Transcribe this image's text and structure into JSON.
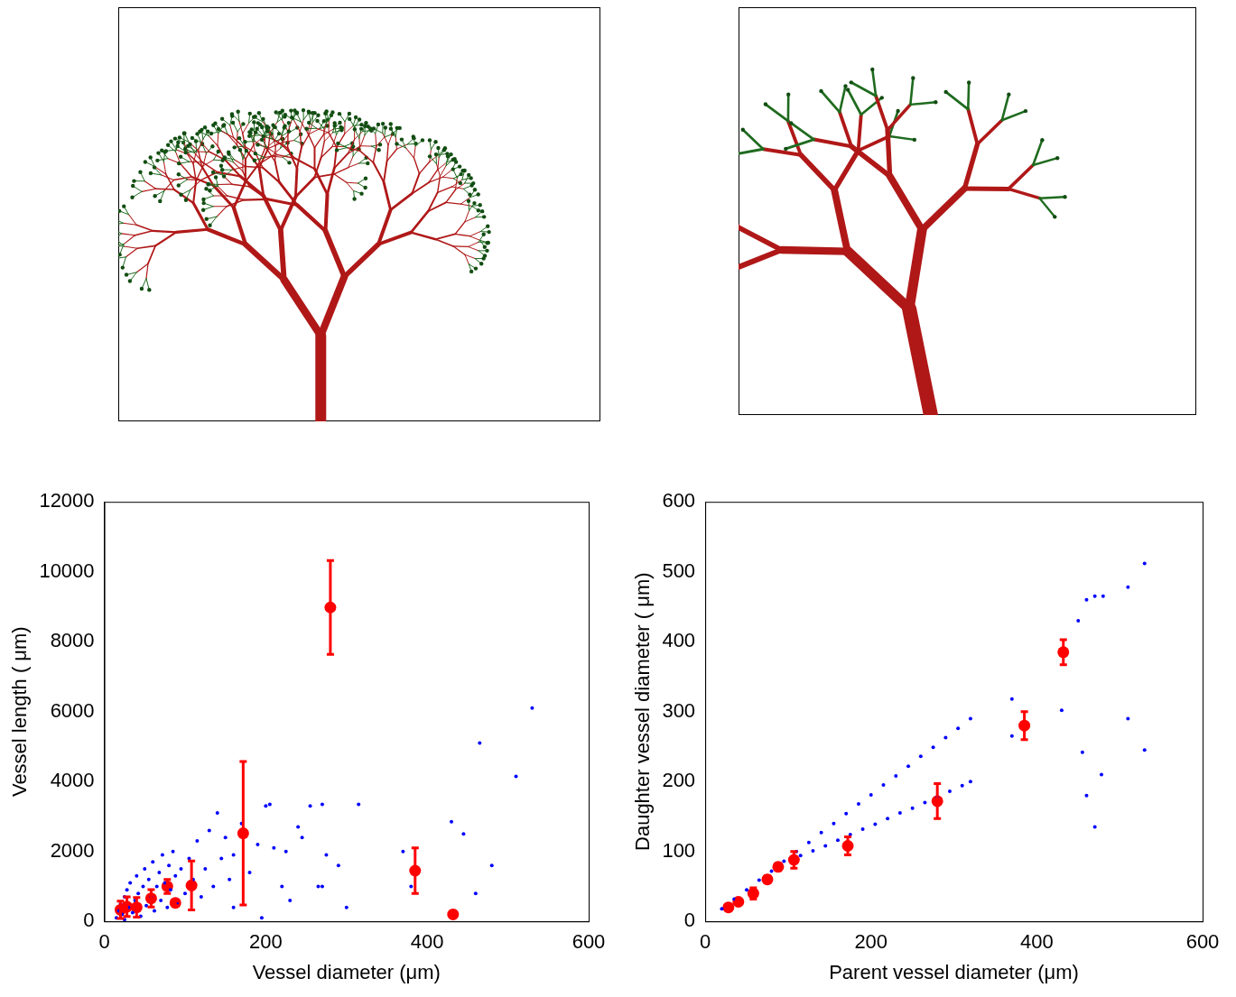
{
  "chart_data": [
    {
      "type": "scatter",
      "x_label": "Vessel diameter (μm)",
      "y_label": "Vessel length ( μm)",
      "xlim": [
        0,
        600
      ],
      "xticks": [
        0,
        200,
        400,
        600
      ],
      "ylim": [
        0,
        12000
      ],
      "yticks": [
        0,
        2000,
        4000,
        6000,
        8000,
        10000,
        12000
      ],
      "grid": false,
      "series": [
        {
          "color": "#0000ff",
          "marker": "dot",
          "x": [
            15,
            18,
            20,
            22,
            25,
            25,
            28,
            30,
            32,
            35,
            38,
            40,
            42,
            45,
            48,
            50,
            52,
            55,
            58,
            60,
            62,
            65,
            68,
            70,
            72,
            75,
            78,
            80,
            82,
            85,
            88,
            90,
            95,
            100,
            105,
            110,
            115,
            120,
            125,
            130,
            135,
            140,
            145,
            150,
            155,
            160,
            170,
            180,
            190,
            200,
            205,
            210,
            220,
            225,
            240,
            245,
            255,
            265,
            270,
            275,
            290,
            300,
            315,
            370,
            380,
            430,
            445,
            460,
            465,
            480,
            510,
            530,
            270,
            230,
            160,
            195
          ],
          "values": [
            100,
            300,
            500,
            200,
            700,
            50,
            900,
            400,
            1100,
            250,
            600,
            1300,
            800,
            150,
            1000,
            1500,
            450,
            1200,
            700,
            1700,
            300,
            1000,
            1400,
            600,
            1900,
            1100,
            400,
            1600,
            900,
            2000,
            1300,
            500,
            1500,
            800,
            1800,
            1200,
            2300,
            700,
            1500,
            2600,
            1000,
            3100,
            1800,
            2400,
            1200,
            1900,
            2800,
            1400,
            2200,
            3300,
            3350,
            2100,
            1000,
            2000,
            2700,
            2400,
            3300,
            1000,
            3350,
            1900,
            1600,
            400,
            3350,
            2000,
            1000,
            2850,
            2500,
            800,
            5100,
            1600,
            4150,
            6100,
            1000,
            600,
            400,
            100
          ]
        },
        {
          "color": "#ff0000",
          "marker": "circle",
          "x": [
            20,
            28,
            40,
            58,
            78,
            88,
            108,
            172,
            280,
            385,
            432
          ],
          "values": [
            330,
            420,
            400,
            660,
            1000,
            530,
            1030,
            2520,
            8980,
            1450,
            200
          ],
          "errors": [
            250,
            280,
            280,
            250,
            200,
            80,
            700,
            2050,
            1340,
            650,
            0
          ]
        }
      ]
    },
    {
      "type": "scatter",
      "x_label": "Parent vessel diameter (μm)",
      "y_label": "Daughter vessel diameter ( μm)",
      "xlim": [
        0,
        600
      ],
      "xticks": [
        0,
        200,
        400,
        600
      ],
      "ylim": [
        0,
        600
      ],
      "yticks": [
        0,
        100,
        200,
        300,
        400,
        500,
        600
      ],
      "grid": false,
      "series": [
        {
          "color": "#0000ff",
          "marker": "dot",
          "x": [
            20,
            35,
            50,
            65,
            80,
            95,
            110,
            125,
            140,
            155,
            170,
            185,
            200,
            215,
            230,
            245,
            260,
            275,
            290,
            305,
            320,
            115,
            130,
            145,
            160,
            175,
            190,
            205,
            220,
            235,
            250,
            265,
            280,
            295,
            310,
            320,
            370,
            370,
            430,
            450,
            460,
            470,
            480,
            510,
            530,
            455,
            460,
            470,
            478,
            510,
            530
          ],
          "values": [
            18,
            32,
            45,
            59,
            72,
            86,
            100,
            113,
            127,
            140,
            154,
            168,
            181,
            195,
            208,
            222,
            236,
            249,
            263,
            276,
            290,
            94,
            101,
            108,
            116,
            124,
            132,
            139,
            147,
            155,
            162,
            170,
            178,
            186,
            194,
            200,
            318,
            265,
            302,
            430,
            460,
            465,
            465,
            478,
            512,
            242,
            180,
            135,
            210,
            290,
            245
          ]
        },
        {
          "color": "#ff0000",
          "marker": "circle",
          "x": [
            28,
            40,
            58,
            75,
            88,
            107,
            172,
            280,
            385,
            432
          ],
          "values": [
            20,
            28,
            40,
            60,
            78,
            88,
            108,
            172,
            280,
            385
          ],
          "errors": [
            3,
            3,
            8,
            5,
            5,
            12,
            13,
            25,
            20,
            18
          ]
        }
      ]
    }
  ]
}
